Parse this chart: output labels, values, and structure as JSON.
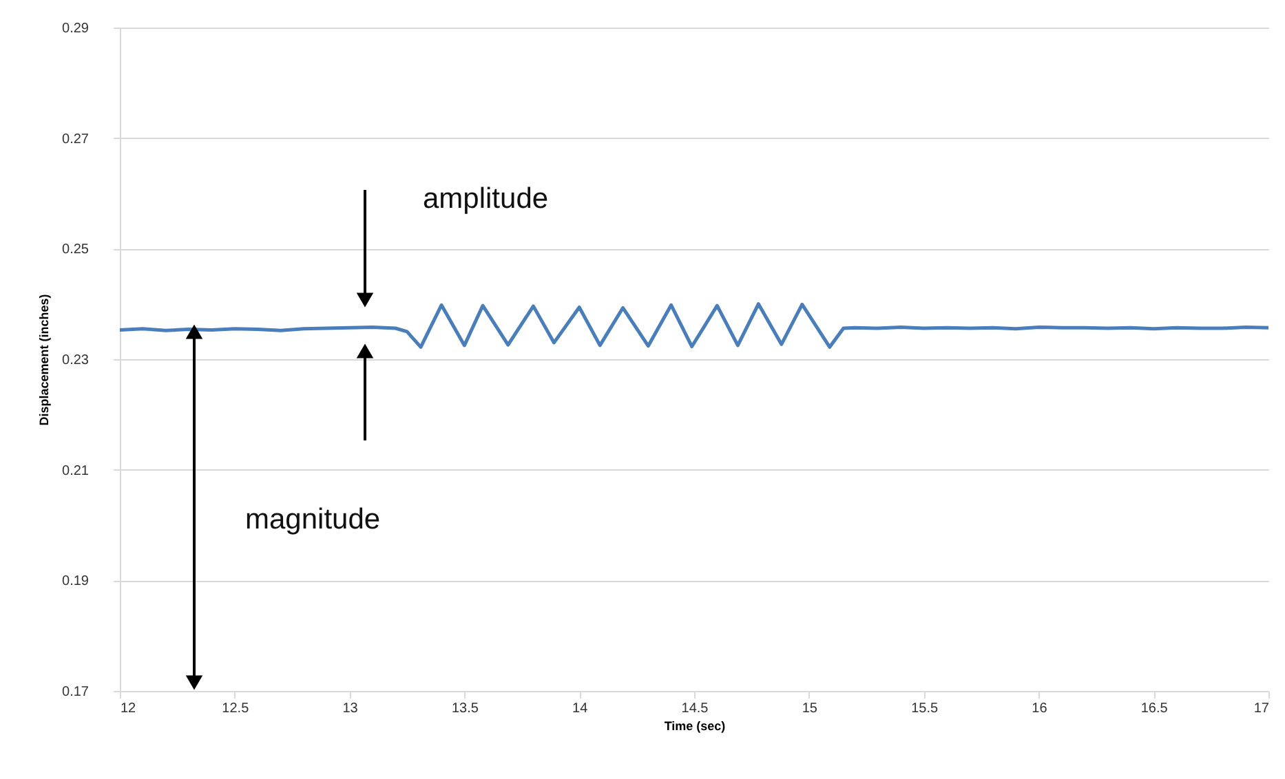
{
  "chart_data": {
    "type": "line",
    "xlabel": "Time (sec)",
    "ylabel": "Displacement (inches)",
    "x": [
      12,
      12.1,
      12.2,
      12.3,
      12.4,
      12.5,
      12.6,
      12.7,
      12.8,
      12.9,
      13,
      13.1,
      13.2,
      13.25,
      13.31,
      13.4,
      13.5,
      13.58,
      13.69,
      13.8,
      13.89,
      14,
      14.09,
      14.19,
      14.3,
      14.4,
      14.49,
      14.6,
      14.69,
      14.78,
      14.88,
      14.97,
      15.09,
      15.15,
      15.2,
      15.3,
      15.4,
      15.5,
      15.6,
      15.7,
      15.8,
      15.9,
      16,
      16.1,
      16.2,
      16.3,
      16.4,
      16.5,
      16.6,
      16.7,
      16.8,
      16.9,
      17
    ],
    "series": [
      {
        "color": "#4a7ebb",
        "values": [
          0.2353,
          0.2355,
          0.2352,
          0.2354,
          0.2353,
          0.2355,
          0.2354,
          0.2352,
          0.2355,
          0.2356,
          0.2357,
          0.2358,
          0.2356,
          0.235,
          0.2322,
          0.2398,
          0.2325,
          0.2397,
          0.2326,
          0.2396,
          0.233,
          0.2394,
          0.2325,
          0.2393,
          0.2324,
          0.2398,
          0.2323,
          0.2397,
          0.2325,
          0.24,
          0.2327,
          0.2399,
          0.2322,
          0.2356,
          0.2357,
          0.2356,
          0.2358,
          0.2356,
          0.2357,
          0.2356,
          0.2357,
          0.2355,
          0.2358,
          0.2357,
          0.2357,
          0.2356,
          0.2357,
          0.2355,
          0.2357,
          0.2356,
          0.2356,
          0.2358,
          0.2357
        ]
      }
    ],
    "xlim": [
      12,
      17
    ],
    "xticks": [
      12,
      12.5,
      13,
      13.5,
      14,
      14.5,
      15,
      15.5,
      16,
      16.5,
      17
    ],
    "ylim": [
      0.17,
      0.29
    ],
    "yticks": [
      0.17,
      0.19,
      0.21,
      0.23,
      0.25,
      0.27,
      0.29
    ],
    "grid": "y",
    "annotations": [
      "amplitude",
      "magnitude"
    ]
  }
}
